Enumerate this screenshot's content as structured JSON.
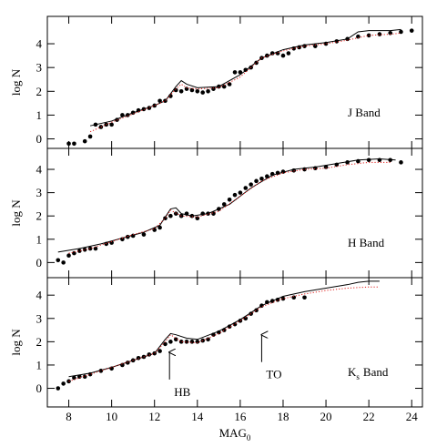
{
  "chart_data": [
    {
      "type": "line",
      "ylabel": "log N",
      "label": {
        "text": "J Band"
      },
      "xlim": [
        7,
        24.5
      ],
      "xticks": [
        8,
        10,
        12,
        14,
        16,
        18,
        20,
        22,
        24
      ],
      "ylim": [
        -0.4,
        5.15
      ],
      "yticks": [
        0,
        1,
        2,
        3,
        4
      ],
      "series": [
        {
          "style": "points",
          "color": "#000000",
          "x": [
            8.0,
            8.25,
            8.75,
            9.0,
            9.25,
            9.5,
            9.75,
            10.0,
            10.25,
            10.5,
            10.75,
            11.0,
            11.25,
            11.5,
            11.75,
            12.0,
            12.25,
            12.5,
            12.75,
            13.0,
            13.25,
            13.5,
            13.75,
            14.0,
            14.25,
            14.5,
            14.75,
            15.0,
            15.25,
            15.5,
            15.75,
            16.0,
            16.25,
            16.5,
            16.75,
            17.0,
            17.25,
            17.5,
            17.75,
            18.0,
            18.25,
            18.5,
            18.75,
            19.0,
            19.5,
            20.0,
            20.5,
            21.0,
            21.5,
            22.0,
            22.5,
            23.0,
            23.5,
            24.0
          ],
          "values": [
            -0.2,
            -0.2,
            -0.1,
            0.1,
            0.6,
            0.5,
            0.6,
            0.6,
            0.8,
            1.0,
            1.0,
            1.1,
            1.2,
            1.25,
            1.3,
            1.4,
            1.6,
            1.6,
            1.8,
            2.05,
            2.0,
            2.1,
            2.05,
            2.0,
            1.95,
            2.0,
            2.1,
            2.2,
            2.2,
            2.3,
            2.8,
            2.8,
            2.9,
            3.0,
            3.2,
            3.4,
            3.5,
            3.6,
            3.6,
            3.5,
            3.6,
            3.8,
            3.85,
            3.9,
            3.9,
            4.0,
            4.1,
            4.2,
            4.3,
            4.35,
            4.4,
            4.45,
            4.5,
            4.55
          ]
        },
        {
          "style": "solid",
          "color": "#000000",
          "x": [
            9.0,
            10,
            11,
            12,
            12.5,
            13,
            13.25,
            13.5,
            14,
            15,
            16,
            17,
            18,
            19,
            20,
            21,
            21.5,
            22,
            23,
            23.5
          ],
          "values": [
            0.55,
            0.75,
            1.1,
            1.4,
            1.6,
            2.2,
            2.45,
            2.3,
            2.15,
            2.2,
            2.7,
            3.4,
            3.75,
            3.95,
            4.05,
            4.2,
            4.5,
            4.55,
            4.55,
            4.6
          ]
        },
        {
          "style": "dotted",
          "color": "#e0201e",
          "x": [
            9.0,
            10,
            11,
            12,
            12.5,
            13,
            13.25,
            13.5,
            14,
            15,
            16,
            17,
            18,
            19,
            20,
            21,
            22,
            23,
            23.5
          ],
          "values": [
            0.3,
            0.7,
            1.05,
            1.4,
            1.6,
            2.1,
            2.3,
            2.15,
            2.1,
            2.15,
            2.6,
            3.4,
            3.7,
            3.9,
            4.0,
            4.15,
            4.35,
            4.4,
            4.45
          ]
        }
      ]
    },
    {
      "type": "line",
      "ylabel": "log N",
      "label": {
        "text": "H Band"
      },
      "xlim": [
        7,
        24.5
      ],
      "xticks": [
        8,
        10,
        12,
        14,
        16,
        18,
        20,
        22,
        24
      ],
      "ylim": [
        -0.65,
        4.9
      ],
      "yticks": [
        0,
        1,
        2,
        3,
        4
      ],
      "series": [
        {
          "style": "points",
          "color": "#000000",
          "x": [
            7.5,
            7.75,
            8,
            8.25,
            8.5,
            8.75,
            9,
            9.25,
            9.75,
            10,
            10.5,
            10.75,
            11,
            11.5,
            12,
            12.25,
            12.5,
            12.75,
            13,
            13.25,
            13.5,
            13.75,
            14,
            14.25,
            14.5,
            14.75,
            15,
            15.25,
            15.5,
            15.75,
            16,
            16.25,
            16.5,
            16.75,
            17,
            17.25,
            17.5,
            17.75,
            18,
            18.5,
            19,
            19.5,
            20,
            20.5,
            21,
            21.5,
            22,
            22.5,
            23,
            23.5
          ],
          "values": [
            0.1,
            0.0,
            0.3,
            0.4,
            0.5,
            0.55,
            0.6,
            0.6,
            0.8,
            0.85,
            1.0,
            1.1,
            1.15,
            1.2,
            1.4,
            1.5,
            1.9,
            2.0,
            2.1,
            2.0,
            2.1,
            2.0,
            1.9,
            2.1,
            2.1,
            2.1,
            2.3,
            2.5,
            2.7,
            2.9,
            3.0,
            3.2,
            3.35,
            3.5,
            3.6,
            3.7,
            3.8,
            3.85,
            3.9,
            3.95,
            4.0,
            4.05,
            4.1,
            4.2,
            4.3,
            4.35,
            4.4,
            4.4,
            4.4,
            4.3
          ]
        },
        {
          "style": "solid",
          "color": "#000000",
          "x": [
            7.5,
            8.5,
            9.5,
            10.5,
            11.5,
            12.25,
            12.75,
            13,
            13.25,
            13.75,
            14.5,
            15.5,
            16.5,
            17.5,
            18.5,
            19.5,
            20.5,
            21.5,
            22.5,
            23.25
          ],
          "values": [
            0.45,
            0.6,
            0.8,
            1.05,
            1.3,
            1.6,
            2.3,
            2.35,
            2.1,
            2.0,
            2.1,
            2.5,
            3.2,
            3.75,
            4.0,
            4.1,
            4.25,
            4.4,
            4.45,
            4.4
          ]
        },
        {
          "style": "dotted",
          "color": "#e0201e",
          "x": [
            8,
            9,
            10,
            11,
            12,
            12.5,
            12.75,
            13.25,
            14,
            15,
            16,
            17,
            18,
            19,
            20,
            21,
            22,
            23
          ],
          "values": [
            0.4,
            0.6,
            0.9,
            1.2,
            1.45,
            1.9,
            2.25,
            2.0,
            1.95,
            2.2,
            2.85,
            3.5,
            3.85,
            4.0,
            4.05,
            4.2,
            4.3,
            4.3
          ]
        }
      ]
    },
    {
      "type": "line",
      "ylabel": "log N",
      "label": {
        "text": "K",
        "sub": "s",
        "rest": "Band"
      },
      "xlabel": {
        "text": "MAG",
        "sub": "0"
      },
      "xlim": [
        7,
        24.5
      ],
      "xticks": [
        8,
        10,
        12,
        14,
        16,
        18,
        20,
        22,
        24
      ],
      "ylim": [
        -0.8,
        4.75
      ],
      "yticks": [
        0,
        1,
        2,
        3,
        4
      ],
      "annotations": [
        {
          "text": "HB",
          "x": 12.7,
          "y": 1.55
        },
        {
          "text": "TO",
          "x": 17,
          "y": 2.3
        }
      ],
      "series": [
        {
          "style": "points",
          "color": "#000000",
          "x": [
            7.5,
            7.75,
            8,
            8.25,
            8.5,
            8.75,
            9,
            9.5,
            10,
            10.5,
            10.75,
            11,
            11.25,
            11.5,
            11.75,
            12,
            12.25,
            12.5,
            12.75,
            13,
            13.25,
            13.5,
            13.75,
            14,
            14.25,
            14.5,
            14.75,
            15,
            15.25,
            15.5,
            15.75,
            16,
            16.25,
            16.5,
            16.75,
            17,
            17.25,
            17.5,
            17.75,
            18,
            18.5,
            19
          ],
          "values": [
            0.0,
            0.2,
            0.3,
            0.45,
            0.5,
            0.5,
            0.6,
            0.75,
            0.85,
            1.0,
            1.1,
            1.2,
            1.3,
            1.35,
            1.45,
            1.5,
            1.6,
            1.9,
            2.0,
            2.1,
            2.0,
            2.0,
            2.0,
            2.0,
            2.05,
            2.1,
            2.3,
            2.4,
            2.5,
            2.65,
            2.75,
            2.9,
            3.0,
            3.2,
            3.35,
            3.55,
            3.7,
            3.75,
            3.8,
            3.85,
            3.9,
            3.9
          ]
        },
        {
          "style": "solid",
          "color": "#000000",
          "x": [
            8,
            9,
            10,
            11,
            12,
            12.5,
            12.75,
            13,
            13.5,
            14,
            15,
            16,
            17,
            18,
            19,
            20,
            21,
            21.5,
            22,
            22.5
          ],
          "values": [
            0.5,
            0.65,
            0.9,
            1.2,
            1.5,
            2.1,
            2.35,
            2.3,
            2.15,
            2.1,
            2.45,
            2.95,
            3.55,
            3.95,
            4.15,
            4.3,
            4.45,
            4.55,
            4.6,
            4.6
          ]
        },
        {
          "style": "dotted",
          "color": "#e0201e",
          "x": [
            8,
            9,
            10,
            11,
            12,
            12.5,
            12.75,
            13.25,
            14,
            15,
            16,
            17,
            18,
            19,
            20,
            21,
            22,
            22.5
          ],
          "values": [
            0.3,
            0.6,
            0.9,
            1.2,
            1.5,
            2.0,
            2.3,
            2.0,
            1.95,
            2.35,
            2.9,
            3.5,
            3.85,
            4.05,
            4.2,
            4.3,
            4.35,
            4.35
          ]
        }
      ]
    }
  ]
}
